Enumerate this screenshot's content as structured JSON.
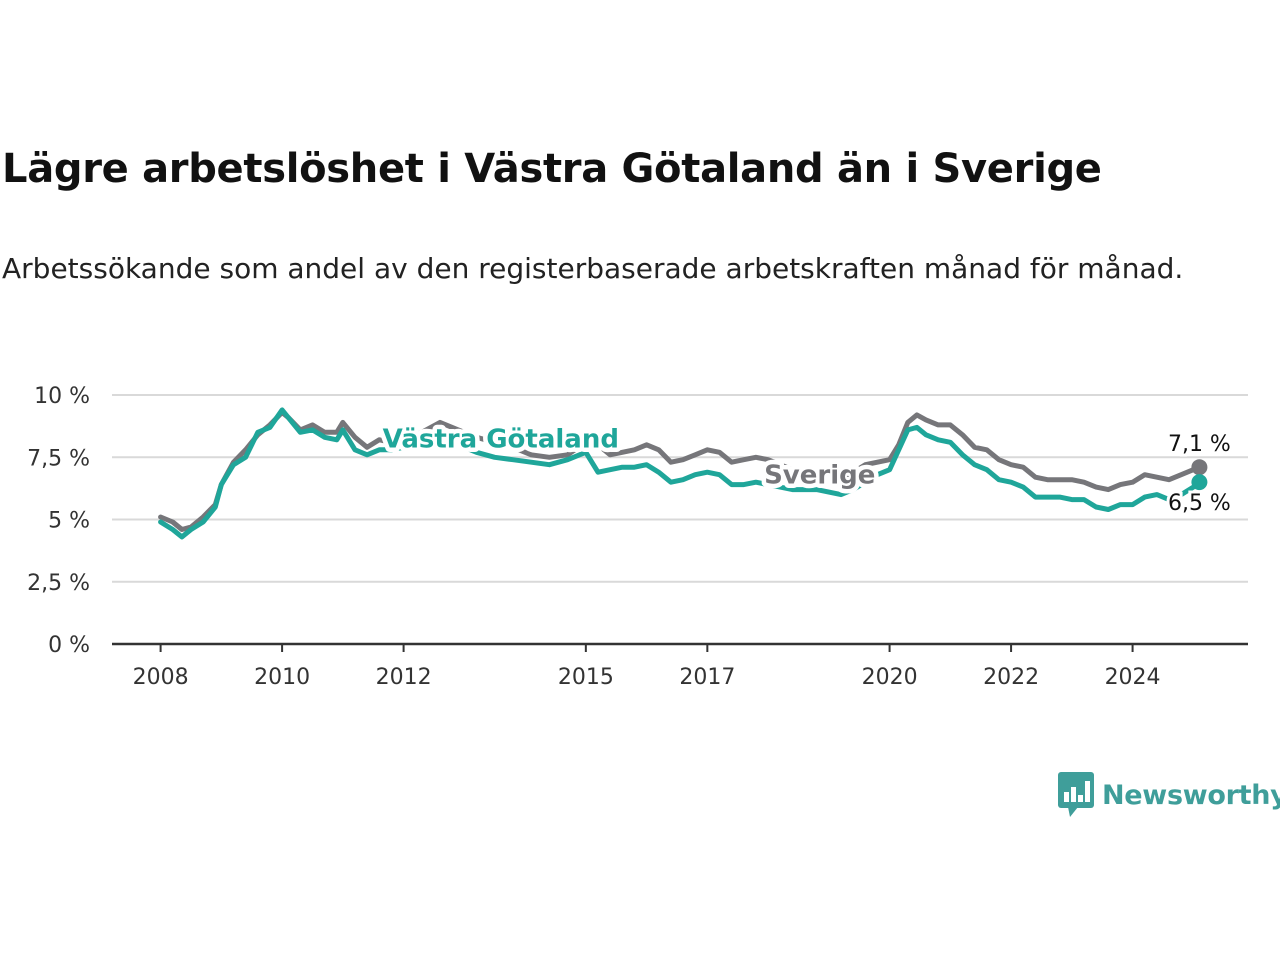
{
  "chart_data": {
    "type": "line",
    "title": "Lägre arbetslöshet i Västra Götaland än i Sverige",
    "subtitle": "Arbetssökande som andel av den registerbaserade arbetskraften månad för månad.",
    "x_unit": "year",
    "xlim": [
      2007.2,
      2025.9
    ],
    "ylim": [
      0,
      10
    ],
    "y_ticks": [
      0,
      2.5,
      5,
      7.5,
      10
    ],
    "y_tick_labels": [
      "0 %",
      "2,5 %",
      "5 %",
      "7,5 %",
      "10 %"
    ],
    "x_ticks": [
      2008,
      2010,
      2012,
      2015,
      2017,
      2020,
      2022,
      2024
    ],
    "x_tick_labels": [
      "2008",
      "2010",
      "2012",
      "2015",
      "2017",
      "2020",
      "2022",
      "2024"
    ],
    "grid": true,
    "series": [
      {
        "name": "Sverige",
        "color": "#76767a",
        "end_label": "7,1 %",
        "x": [
          2008.0,
          2008.2,
          2008.35,
          2008.5,
          2008.7,
          2008.9,
          2009.0,
          2009.2,
          2009.4,
          2009.6,
          2009.8,
          2010.0,
          2010.1,
          2010.3,
          2010.5,
          2010.7,
          2010.9,
          2011.0,
          2011.2,
          2011.4,
          2011.6,
          2011.8,
          2012.0,
          2012.3,
          2012.6,
          2012.9,
          2013.2,
          2013.5,
          2013.8,
          2014.1,
          2014.4,
          2014.7,
          2015.0,
          2015.2,
          2015.4,
          2015.6,
          2015.8,
          2016.0,
          2016.2,
          2016.4,
          2016.6,
          2016.8,
          2017.0,
          2017.2,
          2017.4,
          2017.6,
          2017.8,
          2018.0,
          2018.2,
          2018.4,
          2018.6,
          2018.8,
          2019.0,
          2019.2,
          2019.4,
          2019.6,
          2019.8,
          2020.0,
          2020.15,
          2020.3,
          2020.45,
          2020.6,
          2020.8,
          2021.0,
          2021.2,
          2021.4,
          2021.6,
          2021.8,
          2022.0,
          2022.2,
          2022.4,
          2022.6,
          2022.8,
          2023.0,
          2023.2,
          2023.4,
          2023.6,
          2023.8,
          2024.0,
          2024.2,
          2024.4,
          2024.6,
          2024.8,
          2025.0,
          2025.1
        ],
        "y": [
          5.1,
          4.9,
          4.6,
          4.7,
          5.1,
          5.6,
          6.4,
          7.3,
          7.8,
          8.4,
          8.8,
          9.3,
          9.1,
          8.6,
          8.8,
          8.5,
          8.5,
          8.9,
          8.3,
          7.9,
          8.2,
          8.1,
          8.2,
          8.5,
          8.9,
          8.6,
          8.3,
          8.1,
          7.9,
          7.6,
          7.5,
          7.6,
          8.1,
          8.0,
          7.6,
          7.7,
          7.8,
          8.0,
          7.8,
          7.3,
          7.4,
          7.6,
          7.8,
          7.7,
          7.3,
          7.4,
          7.5,
          7.4,
          7.2,
          7.0,
          6.9,
          6.8,
          6.8,
          6.7,
          6.9,
          7.2,
          7.3,
          7.4,
          8.0,
          8.9,
          9.2,
          9.0,
          8.8,
          8.8,
          8.4,
          7.9,
          7.8,
          7.4,
          7.2,
          7.1,
          6.7,
          6.6,
          6.6,
          6.6,
          6.5,
          6.3,
          6.2,
          6.4,
          6.5,
          6.8,
          6.7,
          6.6,
          6.8,
          7.0,
          7.1
        ]
      },
      {
        "name": "Västra Götaland",
        "color": "#1fa69a",
        "end_label": "6,5 %",
        "x": [
          2008.0,
          2008.2,
          2008.35,
          2008.5,
          2008.7,
          2008.9,
          2009.0,
          2009.2,
          2009.4,
          2009.6,
          2009.8,
          2010.0,
          2010.1,
          2010.3,
          2010.5,
          2010.7,
          2010.9,
          2011.0,
          2011.2,
          2011.4,
          2011.6,
          2011.8,
          2012.0,
          2012.3,
          2012.6,
          2012.9,
          2013.2,
          2013.5,
          2013.8,
          2014.1,
          2014.4,
          2014.7,
          2015.0,
          2015.2,
          2015.4,
          2015.6,
          2015.8,
          2016.0,
          2016.2,
          2016.4,
          2016.6,
          2016.8,
          2017.0,
          2017.2,
          2017.4,
          2017.6,
          2017.8,
          2018.0,
          2018.2,
          2018.4,
          2018.6,
          2018.8,
          2019.0,
          2019.2,
          2019.4,
          2019.6,
          2019.8,
          2020.0,
          2020.15,
          2020.3,
          2020.45,
          2020.6,
          2020.8,
          2021.0,
          2021.2,
          2021.4,
          2021.6,
          2021.8,
          2022.0,
          2022.2,
          2022.4,
          2022.6,
          2022.8,
          2023.0,
          2023.2,
          2023.4,
          2023.6,
          2023.8,
          2024.0,
          2024.2,
          2024.4,
          2024.6,
          2024.8,
          2025.0,
          2025.1
        ],
        "y": [
          4.9,
          4.6,
          4.3,
          4.6,
          4.9,
          5.5,
          6.4,
          7.2,
          7.5,
          8.5,
          8.7,
          9.4,
          9.1,
          8.5,
          8.6,
          8.3,
          8.2,
          8.6,
          7.8,
          7.6,
          7.8,
          7.8,
          7.9,
          8.0,
          8.1,
          8.0,
          7.7,
          7.5,
          7.4,
          7.3,
          7.2,
          7.4,
          7.7,
          6.9,
          7.0,
          7.1,
          7.1,
          7.2,
          6.9,
          6.5,
          6.6,
          6.8,
          6.9,
          6.8,
          6.4,
          6.4,
          6.5,
          6.4,
          6.3,
          6.2,
          6.2,
          6.2,
          6.1,
          6.0,
          6.2,
          6.5,
          6.8,
          7.0,
          7.8,
          8.6,
          8.7,
          8.4,
          8.2,
          8.1,
          7.6,
          7.2,
          7.0,
          6.6,
          6.5,
          6.3,
          5.9,
          5.9,
          5.9,
          5.8,
          5.8,
          5.5,
          5.4,
          5.6,
          5.6,
          5.9,
          6.0,
          5.8,
          6.0,
          6.3,
          6.5
        ]
      }
    ],
    "series_labels": [
      {
        "name": "Västra Götaland",
        "at_x": 2013.6,
        "at_y": 8.25
      },
      {
        "name": "Sverige",
        "at_x": 2018.85,
        "at_y": 6.8
      }
    ]
  },
  "brand": {
    "name": "Newsworthy",
    "color": "#3f9e9a",
    "icon": "newsworthy-logo-icon"
  }
}
